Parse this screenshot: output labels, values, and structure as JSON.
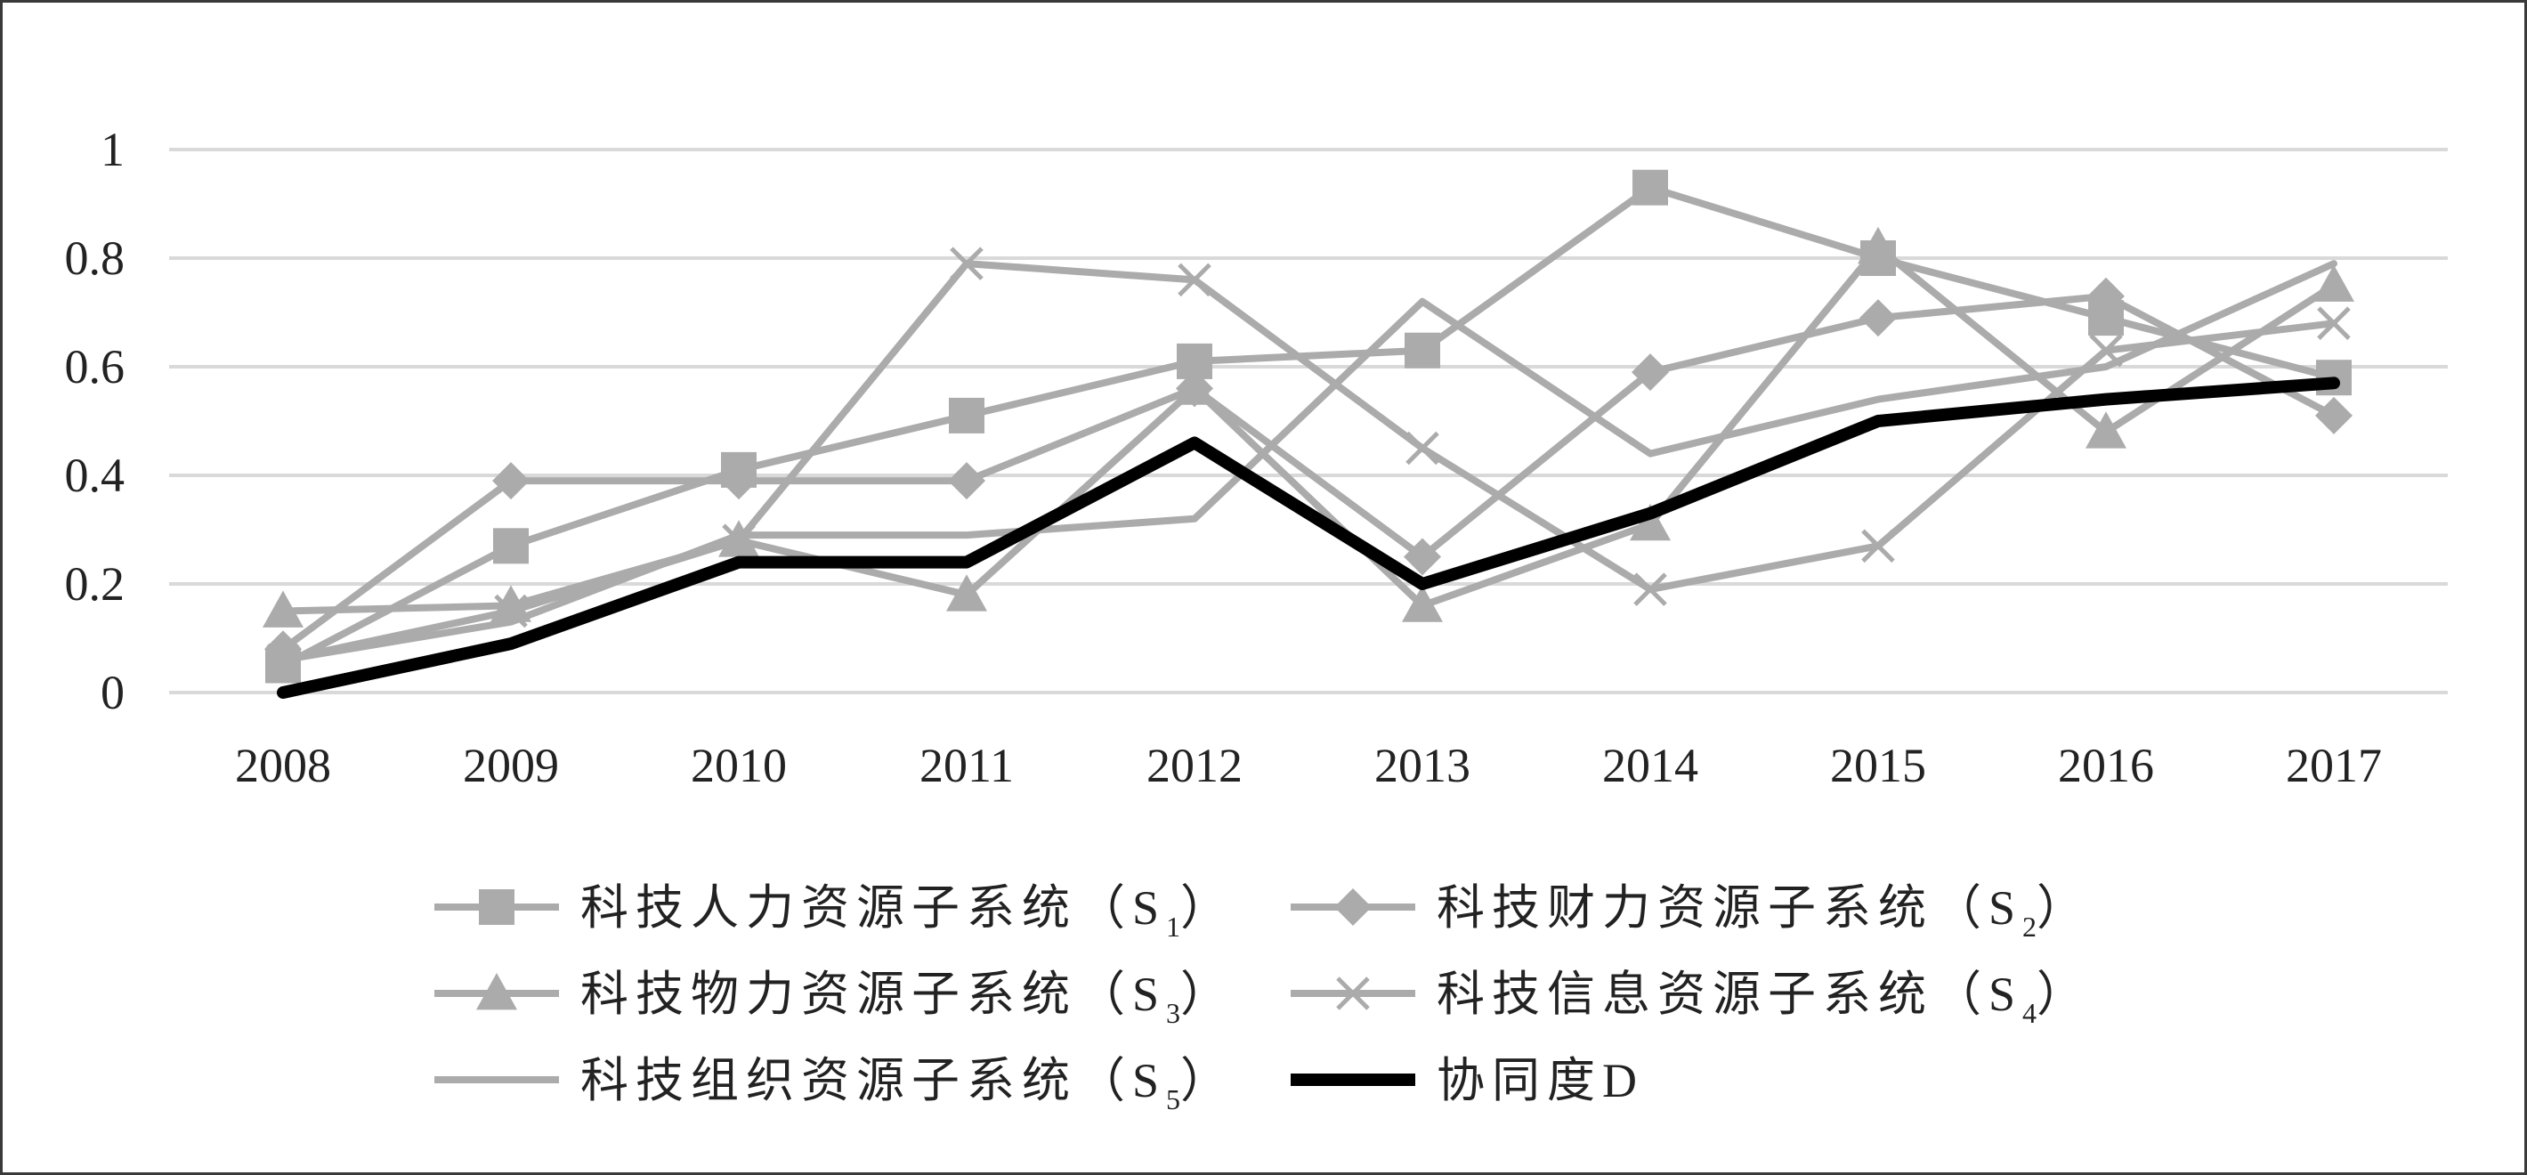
{
  "chart_data": {
    "type": "line",
    "title": "",
    "xlabel": "",
    "ylabel": "",
    "x": [
      "2008",
      "2009",
      "2010",
      "2011",
      "2012",
      "2013",
      "2014",
      "2015",
      "2016",
      "2017"
    ],
    "ylim": [
      0,
      1
    ],
    "yticks": [
      "0",
      "0.2",
      "0.4",
      "0.6",
      "0.8",
      "1"
    ],
    "grid": true,
    "legend": "bottom",
    "series": [
      {
        "legend_main": "科技人力资源子系统（S",
        "legend_sub": "1",
        "legend_close": "）",
        "marker": "square",
        "color": "#ababab",
        "values": [
          0.05,
          0.27,
          0.41,
          0.51,
          0.61,
          0.63,
          0.93,
          0.8,
          0.69,
          0.58
        ]
      },
      {
        "legend_main": "科技财力资源子系统（S",
        "legend_sub": "2",
        "legend_close": "）",
        "marker": "diamond",
        "color": "#ababab",
        "values": [
          0.08,
          0.39,
          0.39,
          0.39,
          0.56,
          0.25,
          0.59,
          0.69,
          0.73,
          0.51
        ]
      },
      {
        "legend_main": "科技物力资源子系统（S",
        "legend_sub": "3",
        "legend_close": "）",
        "marker": "triangle",
        "color": "#ababab",
        "values": [
          0.15,
          0.16,
          0.28,
          0.18,
          0.56,
          0.16,
          0.31,
          0.82,
          0.48,
          0.75
        ]
      },
      {
        "legend_main": "科技信息资源子系统（S",
        "legend_sub": "4",
        "legend_close": "）",
        "marker": "x",
        "color": "#ababab",
        "values": [
          0.06,
          0.15,
          0.28,
          0.79,
          0.76,
          0.45,
          0.19,
          0.27,
          0.63,
          0.68
        ]
      },
      {
        "legend_main": "科技组织资源子系统（S",
        "legend_sub": "5",
        "legend_close": "）",
        "marker": "none",
        "color": "#ababab",
        "values": [
          0.06,
          0.13,
          0.29,
          0.29,
          0.32,
          0.72,
          0.44,
          0.54,
          0.6,
          0.79
        ]
      },
      {
        "legend_main": "协同度D",
        "legend_sub": "",
        "legend_close": "",
        "marker": "none",
        "color": "#000000",
        "values": [
          0.0,
          0.09,
          0.24,
          0.24,
          0.46,
          0.2,
          0.33,
          0.5,
          0.54,
          0.57
        ]
      }
    ]
  }
}
